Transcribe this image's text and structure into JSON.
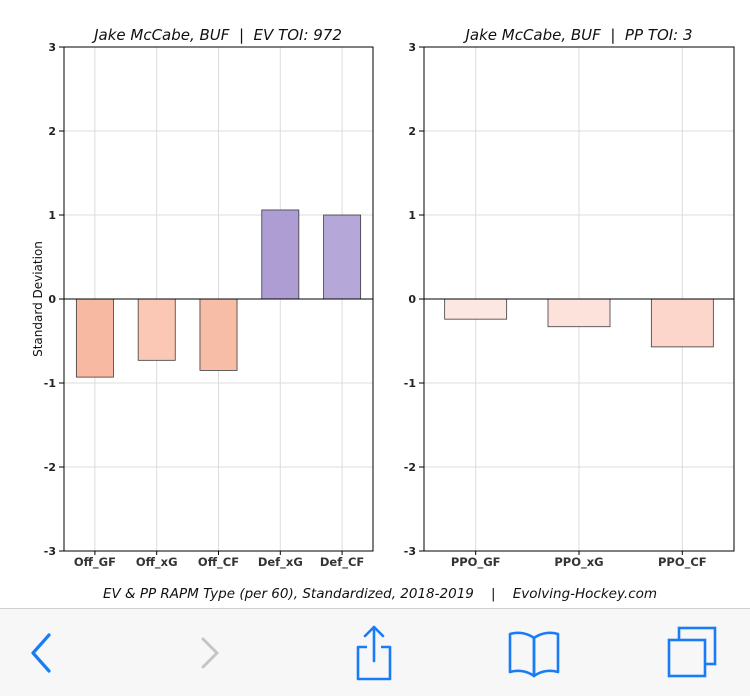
{
  "chart_data": [
    {
      "type": "bar",
      "title": "Jake McCabe, BUF  |  EV TOI: 972",
      "ylabel": "Standard Deviation",
      "xlabel": "",
      "ylim": [
        -3,
        3
      ],
      "yticks": [
        -3,
        -2,
        -1,
        0,
        1,
        2,
        3
      ],
      "grid": true,
      "categories": [
        "Off_GF",
        "Off_xG",
        "Off_CF",
        "Def_xG",
        "Def_CF"
      ],
      "values": [
        -0.93,
        -0.73,
        -0.85,
        1.06,
        1.0
      ],
      "colors": [
        "#f8b9a3",
        "#fbc8b5",
        "#f8bda7",
        "#ae9dd3",
        "#b5a7d8"
      ]
    },
    {
      "type": "bar",
      "title": "Jake McCabe, BUF  |  PP TOI: 3",
      "ylabel": "",
      "xlabel": "",
      "ylim": [
        -3,
        3
      ],
      "yticks": [
        -3,
        -2,
        -1,
        0,
        1,
        2,
        3
      ],
      "grid": true,
      "categories": [
        "PPO_GF",
        "PPO_xG",
        "PPO_CF"
      ],
      "values": [
        -0.24,
        -0.33,
        -0.57
      ],
      "colors": [
        "#fde7e2",
        "#fde2dc",
        "#fcd5cb"
      ]
    }
  ],
  "footer": {
    "caption": "EV & PP RAPM Type (per 60), Standardized, 2018-2019    |    Evolving-Hockey.com"
  },
  "toolbar": {
    "accent_color": "#1a7cf5",
    "disabled_color": "#c5c5c7",
    "icons": [
      "back-icon",
      "forward-icon",
      "share-icon",
      "bookmarks-icon",
      "tabs-icon"
    ]
  }
}
